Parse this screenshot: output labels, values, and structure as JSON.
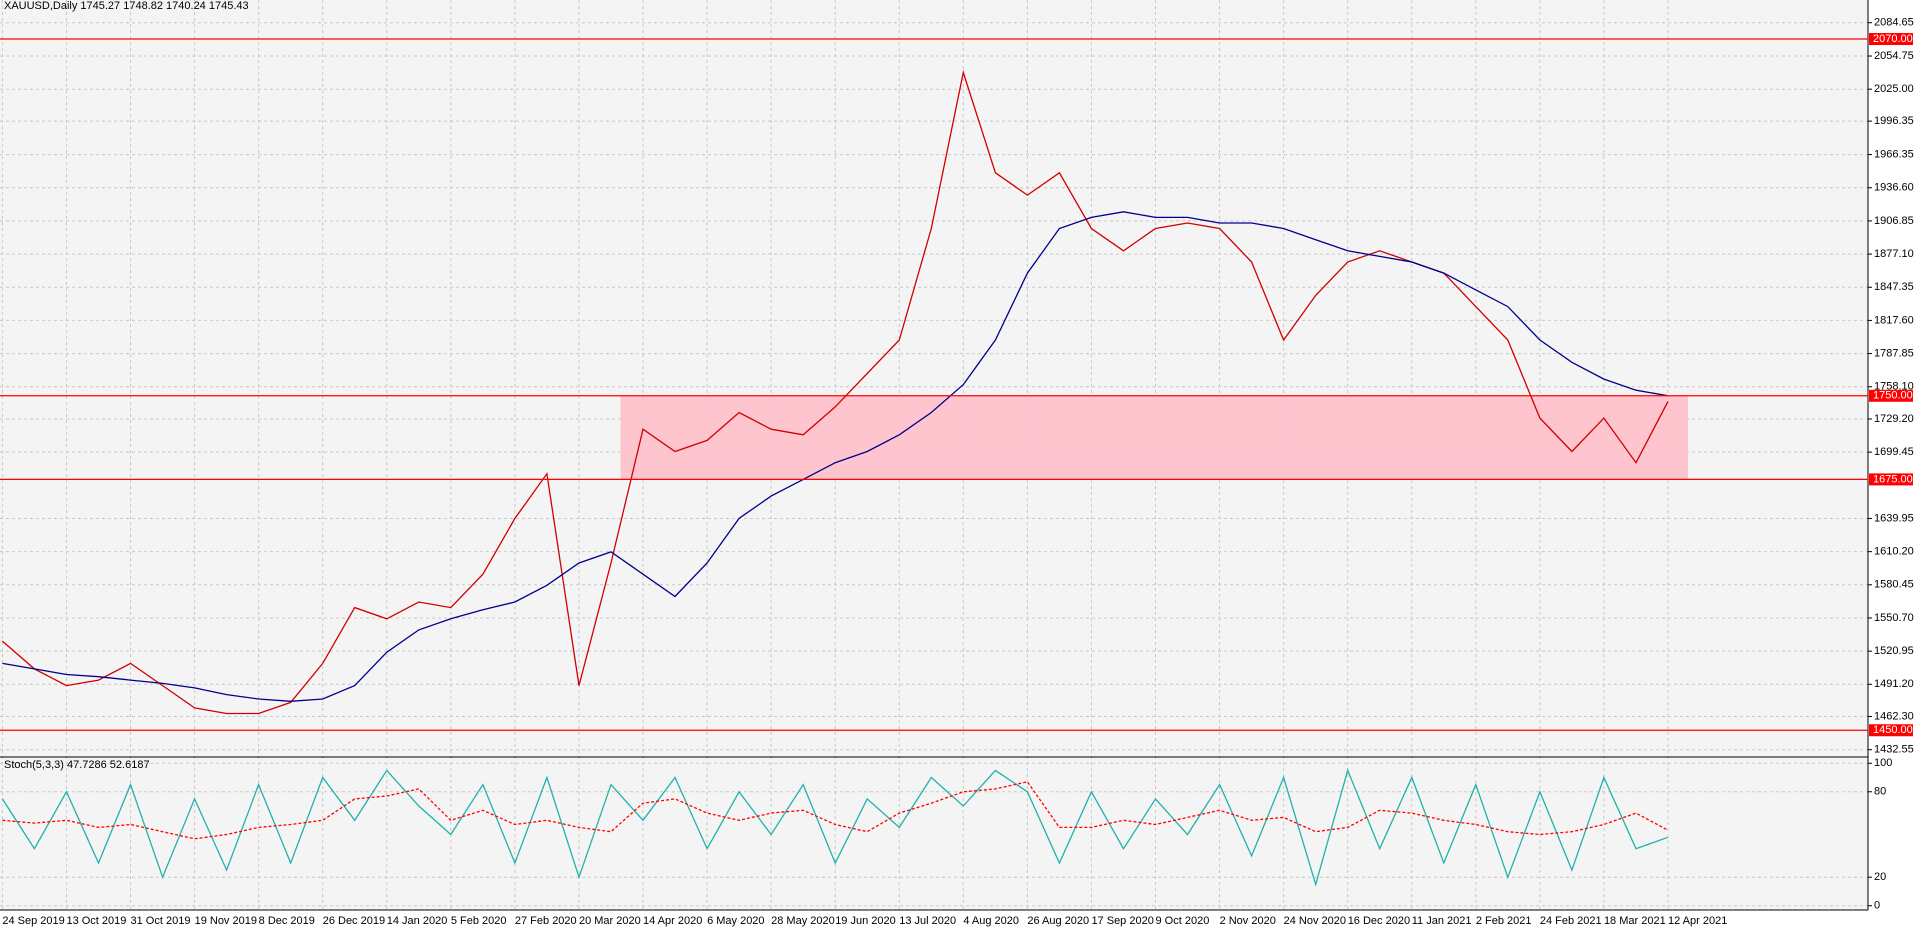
{
  "chart_data": [
    {
      "type": "line",
      "title": "XAUUSD,Daily  1745.27 1748.82 1740.24 1745.43",
      "categories": [
        "24 Sep 2019",
        null,
        "13 Oct 2019",
        null,
        "31 Oct 2019",
        null,
        "19 Nov 2019",
        null,
        "8 Dec 2019",
        null,
        "26 Dec 2019",
        null,
        "14 Jan 2020",
        null,
        "5 Feb 2020",
        null,
        "27 Feb 2020",
        null,
        "20 Mar 2020",
        null,
        "14 Apr 2020",
        null,
        "6 May 2020",
        null,
        "28 May 2020",
        null,
        "19 Jun 2020",
        null,
        "13 Jul 2020",
        null,
        "4 Aug 2020",
        null,
        "26 Aug 2020",
        null,
        "17 Sep 2020",
        null,
        "9 Oct 2020",
        null,
        "2 Nov 2020",
        null,
        "24 Nov 2020",
        null,
        "16 Dec 2020",
        null,
        "11 Jan 2021",
        null,
        "2 Feb 2021",
        null,
        "24 Feb 2021",
        null,
        "18 Mar 2021",
        null,
        "12 Apr 2021"
      ],
      "series": [
        {
          "color": "#d00000",
          "values": [
            1530,
            1505,
            1490,
            1495,
            1510,
            1490,
            1470,
            1465,
            1465,
            1475,
            1510,
            1560,
            1550,
            1565,
            1560,
            1590,
            1640,
            1680,
            1490,
            1600,
            1720,
            1700,
            1710,
            1735,
            1720,
            1715,
            1740,
            1770,
            1800,
            1900,
            2040,
            1950,
            1930,
            1950,
            1900,
            1880,
            1900,
            1905,
            1900,
            1870,
            1800,
            1840,
            1870,
            1880,
            1870,
            1860,
            1830,
            1800,
            1730,
            1700,
            1730,
            1690,
            1745
          ]
        },
        {
          "color": "#00008b",
          "values": [
            1510,
            1505,
            1500,
            1498,
            1495,
            1492,
            1488,
            1482,
            1478,
            1476,
            1478,
            1490,
            1520,
            1540,
            1550,
            1558,
            1565,
            1580,
            1600,
            1610,
            1590,
            1570,
            1600,
            1640,
            1660,
            1675,
            1690,
            1700,
            1715,
            1735,
            1760,
            1800,
            1860,
            1900,
            1910,
            1915,
            1910,
            1910,
            1905,
            1905,
            1900,
            1890,
            1880,
            1875,
            1870,
            1860,
            1845,
            1830,
            1800,
            1780,
            1765,
            1755,
            1750
          ]
        }
      ],
      "ylim": [
        1426,
        2105
      ],
      "yticks": [
        {
          "value": 1432.55,
          "label": "1432.55"
        },
        {
          "value": 1462.3,
          "label": "1462.30"
        },
        {
          "value": 1491.2,
          "label": "1491.20"
        },
        {
          "value": 1520.95,
          "label": "1520.95"
        },
        {
          "value": 1550.7,
          "label": "1550.70"
        },
        {
          "value": 1580.45,
          "label": "1580.45"
        },
        {
          "value": 1610.2,
          "label": "1610.20"
        },
        {
          "value": 1639.95,
          "label": "1639.95"
        },
        {
          "value": 1699.45,
          "label": "1699.45"
        },
        {
          "value": 1729.2,
          "label": "1729.20"
        },
        {
          "value": 1758.1,
          "label": "1758.10"
        },
        {
          "value": 1787.85,
          "label": "1787.85"
        },
        {
          "value": 1817.6,
          "label": "1817.60"
        },
        {
          "value": 1847.35,
          "label": "1847.35"
        },
        {
          "value": 1877.1,
          "label": "1877.10"
        },
        {
          "value": 1906.85,
          "label": "1906.85"
        },
        {
          "value": 1936.6,
          "label": "1936.60"
        },
        {
          "value": 1966.35,
          "label": "1966.35"
        },
        {
          "value": 1996.35,
          "label": "1996.35"
        },
        {
          "value": 2025,
          "label": "2025.00"
        },
        {
          "value": 2054.75,
          "label": "2054.75"
        },
        {
          "value": 2084.65,
          "label": "2084.65"
        }
      ],
      "levels": [
        {
          "value": 2070,
          "label": "2070.00"
        },
        {
          "value": 1750,
          "label": "1750.00"
        },
        {
          "value": 1675,
          "label": "1675.00"
        },
        {
          "value": 1450,
          "label": "1450.00"
        }
      ],
      "zone": {
        "from": 1675,
        "to": 1750,
        "color": "#ffc0cb"
      },
      "grid": true
    },
    {
      "type": "line",
      "title": "Stoch(5,3,3) 47.7286 52.6187",
      "series": [
        {
          "color": "#20b2aa",
          "values": [
            75,
            40,
            80,
            30,
            85,
            20,
            75,
            25,
            85,
            30,
            90,
            60,
            95,
            70,
            50,
            85,
            30,
            90,
            20,
            85,
            60,
            90,
            40,
            80,
            50,
            85,
            30,
            75,
            55,
            90,
            70,
            95,
            80,
            30,
            80,
            40,
            75,
            50,
            85,
            35,
            90,
            15,
            95,
            40,
            90,
            30,
            85,
            20,
            80,
            25,
            90,
            40,
            48
          ]
        },
        {
          "color": "#ff0000",
          "dashed": true,
          "values": [
            60,
            58,
            60,
            55,
            57,
            52,
            47,
            50,
            55,
            57,
            60,
            75,
            77,
            82,
            60,
            67,
            57,
            60,
            55,
            52,
            72,
            75,
            65,
            60,
            65,
            67,
            57,
            52,
            65,
            72,
            80,
            82,
            87,
            55,
            55,
            60,
            57,
            62,
            67,
            60,
            62,
            52,
            55,
            67,
            65,
            60,
            57,
            52,
            50,
            52,
            57,
            65,
            53
          ]
        }
      ],
      "ylim": [
        -3,
        103
      ],
      "yticks": [
        0,
        20,
        80,
        100
      ],
      "grid": true
    }
  ]
}
